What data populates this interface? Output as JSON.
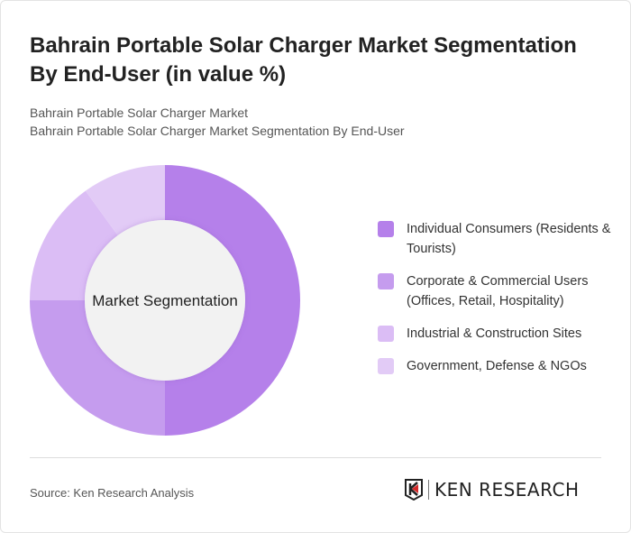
{
  "title": "Bahrain Portable Solar Charger Market Segmentation By End-User (in value %)",
  "subtitle1": "Bahrain Portable Solar Charger Market",
  "subtitle2": "Bahrain Portable Solar Charger Market Segmentation By End-User",
  "source": "Source: Ken Research Analysis",
  "logo_text": "KEN RESEARCH",
  "chart_data": {
    "type": "pie",
    "donut": true,
    "center_label": "Market Segmentation",
    "legend_position": "right",
    "categories": [
      "Individual Consumers (Residents & Tourists)",
      "Corporate & Commercial Users (Offices, Retail, Hospitality)",
      "Industrial & Construction Sites",
      "Government, Defense & NGOs"
    ],
    "values": [
      50,
      25,
      15,
      10
    ],
    "colors": [
      "#b580ea",
      "#c59cee",
      "#dbbdf5",
      "#e2cbf6"
    ]
  }
}
